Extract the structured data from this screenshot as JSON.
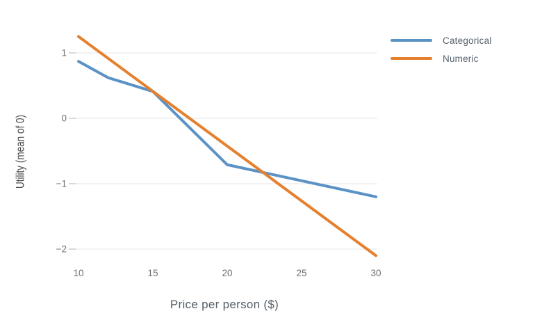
{
  "chart_data": {
    "type": "line",
    "title": "",
    "xlabel": "Price per person ($)",
    "ylabel": "Utility (mean of 0)",
    "x_ticks": [
      10,
      15,
      20,
      25,
      30
    ],
    "y_ticks": [
      1,
      0,
      -1,
      -2
    ],
    "xlim": [
      10,
      30
    ],
    "ylim": [
      -2.2,
      1.4
    ],
    "grid": "horizontal-only",
    "legend_position": "top-right",
    "background_color": "#ffffff",
    "gridline_color": "#e4e4e4",
    "series": [
      {
        "name": "Categorical",
        "color": "#5B92C6",
        "x": [
          10,
          12,
          15,
          20,
          30
        ],
        "y": [
          0.87,
          0.62,
          0.41,
          -0.71,
          -1.2
        ]
      },
      {
        "name": "Numeric",
        "color": "#E5802F",
        "x": [
          10,
          30
        ],
        "y": [
          1.25,
          -2.1
        ]
      }
    ]
  }
}
